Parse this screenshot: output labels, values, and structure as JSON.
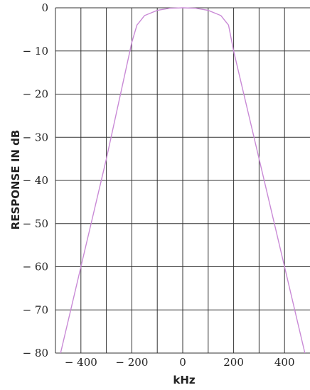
{
  "chart_data": {
    "type": "line",
    "title": "",
    "xlabel": "kHz",
    "ylabel": "RESPONSE IN dB",
    "xlim": [
      -500,
      500
    ],
    "ylim": [
      -80,
      0
    ],
    "x_ticks": [
      -400,
      -200,
      0,
      200,
      400
    ],
    "x_tick_labels": [
      "− 400",
      "− 200",
      "0",
      "200",
      "400"
    ],
    "y_ticks": [
      0,
      -10,
      -20,
      -30,
      -40,
      -50,
      -60,
      -70,
      -80
    ],
    "y_tick_labels": [
      "0",
      "− 10",
      "− 20",
      "− 30",
      "− 40",
      "− 50",
      "− 60",
      "− 70",
      "− 80"
    ],
    "grid": true,
    "series": [
      {
        "color": "#c98ad6",
        "x": [
          -480,
          -400,
          -300,
          -200,
          -180,
          -150,
          -100,
          -50,
          0,
          50,
          100,
          150,
          180,
          200,
          300,
          400,
          480
        ],
        "y": [
          -80,
          -60,
          -35,
          -8,
          -4,
          -1.8,
          -0.6,
          -0.1,
          0,
          -0.1,
          -0.6,
          -1.8,
          -4,
          -10,
          -35,
          -60,
          -80
        ]
      }
    ]
  }
}
